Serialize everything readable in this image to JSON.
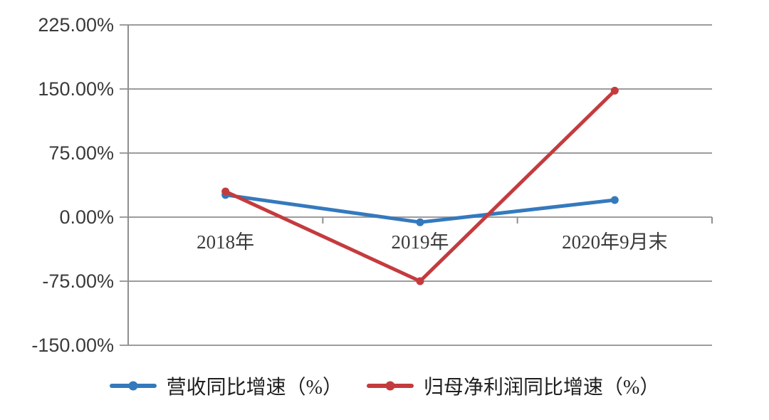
{
  "chart_data": {
    "type": "line",
    "categories": [
      "2018年",
      "2019年",
      "2020年9月末"
    ],
    "series": [
      {
        "name": "营收同比增速（%）",
        "color": "#3579BD",
        "values": [
          26,
          -6,
          20
        ]
      },
      {
        "name": "归母净利润同比增速（%）",
        "color": "#C43B3E",
        "values": [
          30,
          -75,
          148
        ]
      }
    ],
    "title": "",
    "xlabel": "",
    "ylabel": "",
    "ylim": [
      -150,
      225
    ],
    "yticks": [
      225,
      150,
      75,
      0,
      -75,
      -150
    ],
    "ytick_labels": [
      "225.00%",
      "150.00%",
      "75.00%",
      "0.00%",
      "-75.00%",
      "-150.00%"
    ],
    "grid": true,
    "legend_position": "bottom"
  },
  "style": {
    "gridline_color": "#9C9C9C",
    "axis_color": "#8F8F8F",
    "tick_text_color": "#3A3A3A",
    "background": "#FFFFFF"
  }
}
